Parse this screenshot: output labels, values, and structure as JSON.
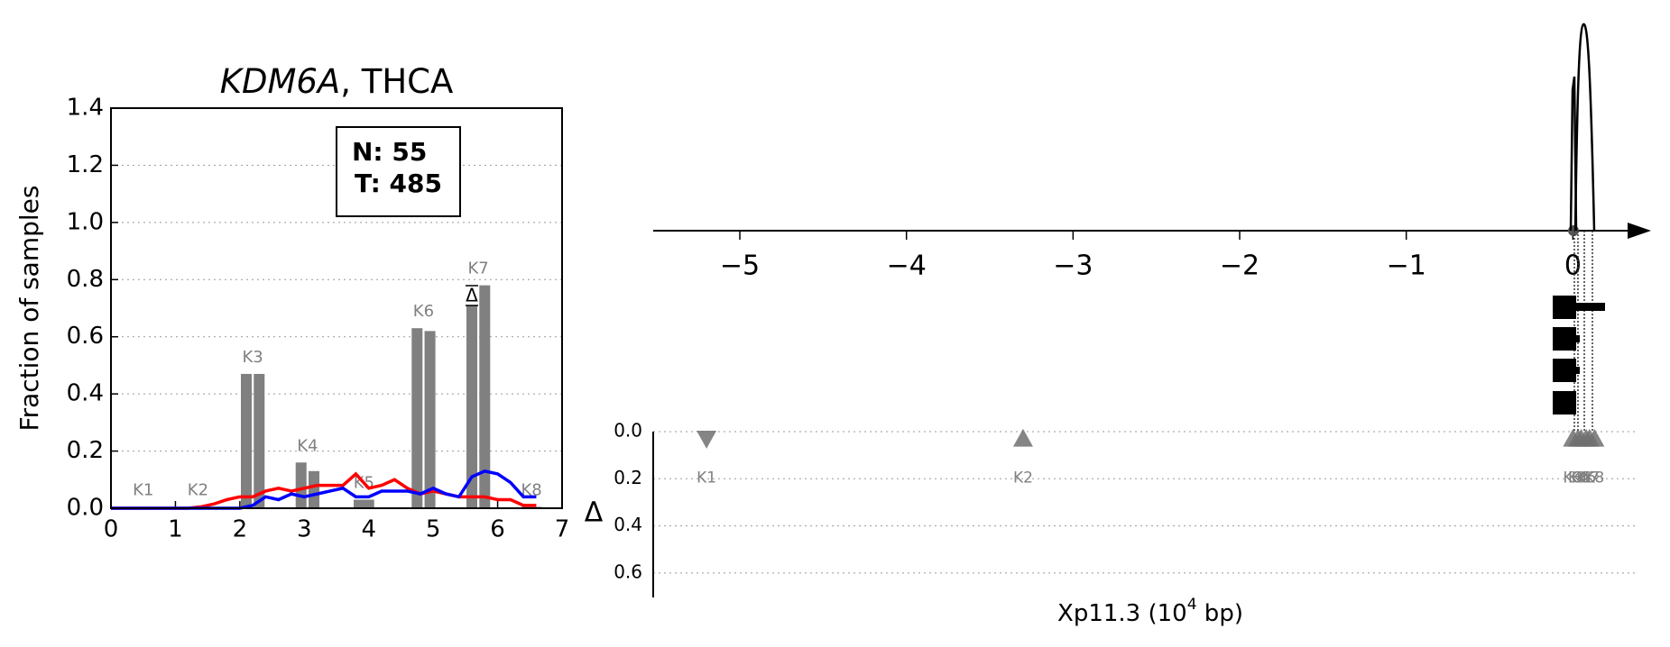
{
  "chart_data": [
    {
      "type": "bar-line",
      "title": [
        "KDM6A",
        ", THCA"
      ],
      "ylabel": "Fraction of samples",
      "legend_text": [
        "N: 55",
        "T: 485"
      ],
      "annotation": "Δ",
      "xlim": [
        0,
        7
      ],
      "xticks": [
        0,
        1,
        2,
        3,
        4,
        5,
        6,
        7
      ],
      "ylim": [
        0,
        1.4
      ],
      "yticks": [
        {
          "value": 0,
          "label": "0.0"
        },
        0.2,
        0.4,
        0.6,
        0.8,
        {
          "value": 1,
          "label": "1.0"
        },
        1.2,
        1.4
      ],
      "grid": true,
      "bar_color": "#808080",
      "bars": [
        {
          "label": "K1",
          "x": [
            0.45,
            0.55
          ],
          "values": [
            0.005,
            0.005
          ]
        },
        {
          "label": "K2",
          "x": [
            1.3,
            1.4
          ],
          "values": [
            0.005,
            0.005
          ]
        },
        {
          "label": "K3",
          "x": [
            2.1,
            2.3
          ],
          "values": [
            0.47,
            0.47
          ]
        },
        {
          "label": "K4",
          "x": [
            2.95,
            3.15
          ],
          "values": [
            0.16,
            0.13
          ]
        },
        {
          "label": "K5",
          "x": [
            3.85,
            4.0
          ],
          "values": [
            0.03,
            0.03
          ]
        },
        {
          "label": "K6",
          "x": [
            4.75,
            4.95
          ],
          "values": [
            0.63,
            0.62
          ]
        },
        {
          "label": "K7",
          "x": [
            5.6,
            5.8
          ],
          "values": [
            0.71,
            0.78
          ]
        },
        {
          "label": "K8",
          "x": [
            6.45,
            6.6
          ],
          "values": [
            0.005,
            0.005
          ]
        }
      ],
      "x": [
        0,
        0.2,
        0.4,
        0.6,
        0.8,
        1.0,
        1.2,
        1.4,
        1.6,
        1.8,
        2.0,
        2.2,
        2.4,
        2.6,
        2.8,
        3.0,
        3.2,
        3.4,
        3.6,
        3.8,
        4.0,
        4.2,
        4.4,
        4.6,
        4.8,
        5.0,
        5.2,
        5.4,
        5.6,
        5.8,
        6.0,
        6.2,
        6.4,
        6.6
      ],
      "series": [
        {
          "color": "#ff0000",
          "values": [
            0,
            0,
            0,
            0,
            0,
            0,
            0,
            0.005,
            0.015,
            0.03,
            0.04,
            0.04,
            0.06,
            0.07,
            0.06,
            0.07,
            0.08,
            0.08,
            0.08,
            0.12,
            0.07,
            0.08,
            0.1,
            0.07,
            0.05,
            0.06,
            0.05,
            0.04,
            0.04,
            0.04,
            0.03,
            0.03,
            0.01,
            0.01
          ]
        },
        {
          "color": "#0000ff",
          "values": [
            0,
            0,
            0,
            0,
            0,
            0,
            0,
            0,
            0,
            0,
            0,
            0.01,
            0.04,
            0.03,
            0.05,
            0.04,
            0.05,
            0.06,
            0.07,
            0.04,
            0.04,
            0.06,
            0.06,
            0.06,
            0.05,
            0.07,
            0.05,
            0.04,
            0.11,
            0.13,
            0.12,
            0.09,
            0.04,
            0.04
          ]
        }
      ]
    },
    {
      "type": "genome-track",
      "xlabel": [
        "Xp11.3 (10",
        "4",
        " bp)"
      ],
      "ylabel": "Δ",
      "xlim": [
        -5.52,
        0.48
      ],
      "xticks": [
        {
          "value": -5,
          "label": "−5"
        },
        {
          "value": -4,
          "label": "−4"
        },
        {
          "value": -3,
          "label": "−3"
        },
        {
          "value": -2,
          "label": "−2"
        },
        {
          "value": -1,
          "label": "−1"
        },
        0
      ],
      "ylim": [
        0,
        0.7
      ],
      "yticks": [
        {
          "value": 0,
          "label": "0.0"
        },
        0.2,
        0.4,
        0.6
      ],
      "grid": true,
      "marker_color": "#707070",
      "categories": [
        "K1",
        "K2",
        "K3",
        "K4",
        "K5",
        "K6",
        "K7",
        "K8"
      ],
      "x": [
        -5.2,
        -3.3,
        0.0,
        0.03,
        0.05,
        0.08,
        0.1,
        0.13
      ],
      "values": [
        0.03,
        0.03,
        0.03,
        0.03,
        0.03,
        0.03,
        0.03,
        0.03
      ],
      "direction": [
        "down",
        "up",
        "up",
        "up",
        "up",
        "up",
        "up",
        "up"
      ]
    }
  ]
}
